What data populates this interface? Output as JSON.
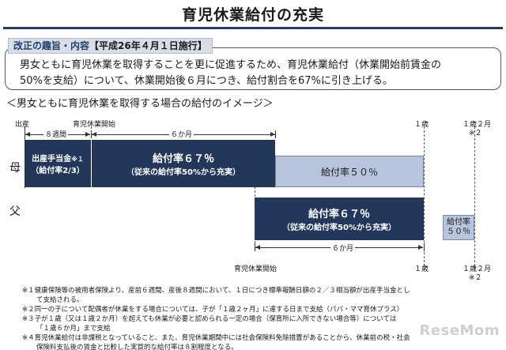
{
  "title": "育児休業給付の充実",
  "purpose": {
    "heading": "改正の趣旨・内容",
    "date": "【平成26年４月１日施行】",
    "line1": "男女ともに育児休業を取得することを更に促進するため、育児休業給付（休業開始前賃金の",
    "line2": "50%を支給）について、休業開始後６月につき、給付割合を67%に引き上げる。"
  },
  "image_title": "＜男女ともに育児休業を取得する場合の給付のイメージ＞",
  "timeline": {
    "birth": "出産",
    "leave_start": "育児休業開始",
    "one_year": "１歳",
    "one_year_two_months": "１歳２月",
    "note2": "※２",
    "eight_weeks": "８週間",
    "six_months": "６か月",
    "six_months_father": "６か月",
    "leave_start_father": "育児休業開始"
  },
  "mother": {
    "label": "母",
    "maternity_title": "出産手当金",
    "maternity_note": "※１",
    "maternity_rate": "（給付率2/3）",
    "rate67": "給付率６７％",
    "rate67_note": "（従来の給付率50%から充実）",
    "rate50": "給付率５０％"
  },
  "father": {
    "label": "父",
    "rate67": "給付率６７％",
    "rate67_note": "（従来の給付率50%から充実）",
    "rate50_a": "給付率",
    "rate50_b": "５０％"
  },
  "notes": [
    "※１健康保険等の被用者保険より、産前６週間、産後８週間において、１日につき標準報酬日額の２／３相当額が出産手当金とし",
    "て支給される。",
    "※２同一の子について配偶者が休業をする場合については、子が「１歳２ヶ月」に達する日まで支給（パパ・ママ育休プラス）",
    "※３子が１歳（又は１歳２か月）を超えても休業が必要と認められる一定の場合（保育所に入所できない場合等）については",
    "「１歳６か月」まで支給",
    "※４育児休業給付は非課税となっていること、また、育児休業期間中には社会保険料免除措置があることから、休業前の税・社会",
    "保険料支払後の賃金と比較した実質的な給付率は８割程度となる。"
  ],
  "watermark": "ReseMom"
}
